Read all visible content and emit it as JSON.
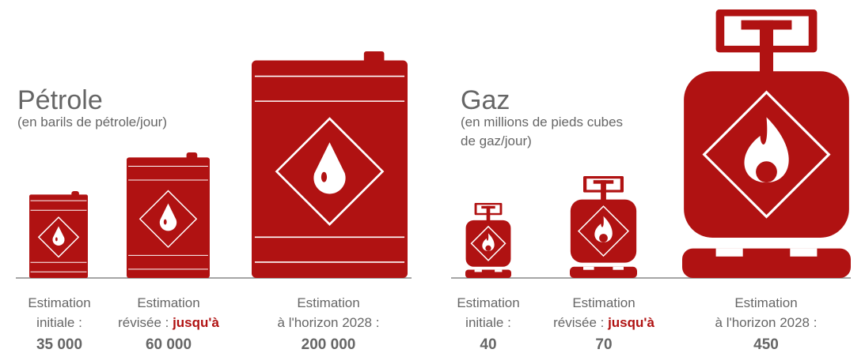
{
  "oil": {
    "title": "Pétrole",
    "subtitle": [
      "(en barils de pétrole/jour)"
    ],
    "items": [
      {
        "label": [
          "Estimation",
          "initiale :"
        ],
        "value": "35 000"
      },
      {
        "label": [
          "Estimation",
          "révisée :"
        ],
        "highlight": "jusqu'à",
        "value": "60 000"
      },
      {
        "label": [
          "Estimation",
          "à l'horizon 2028 :"
        ],
        "value": "200 000"
      }
    ]
  },
  "gas": {
    "title": "Gaz",
    "subtitle": [
      "(en millions de pieds cubes",
      "de gaz/jour)"
    ],
    "items": [
      {
        "label": [
          "Estimation",
          "initiale :"
        ],
        "value": "40"
      },
      {
        "label": [
          "Estimation",
          "révisée :"
        ],
        "highlight": "jusqu'à",
        "value": "70"
      },
      {
        "label": [
          "Estimation",
          "à l'horizon 2028 :"
        ],
        "value": "450"
      }
    ]
  }
}
